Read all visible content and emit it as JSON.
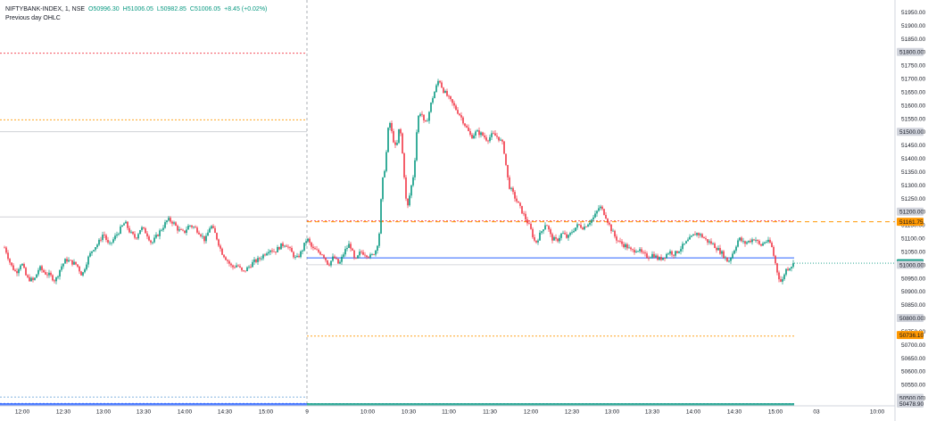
{
  "symbol_line": {
    "symbol": "NIFTYBANK-INDEX, 1, NSE",
    "open": "O50996.30",
    "high": "H51006.05",
    "low": "L50982.85",
    "close": "C51006.05",
    "change": "+8.45 (+0.02%)"
  },
  "indicator_label": "Previous day OHLC",
  "colors": {
    "up": "#089981",
    "down": "#f23645",
    "grid": "#e0e3eb",
    "axis_text": "#131722",
    "high_line": "#f23645",
    "low_line": "#ff9800",
    "open_line": "#e0e0e0",
    "close_line": "#2962ff"
  },
  "chart_data": {
    "type": "candlestick",
    "ylim": [
      50470,
      51975
    ],
    "y_ticks": [
      51950,
      51900,
      51850,
      51800,
      51750,
      51700,
      51650,
      51600,
      51550,
      51500,
      51450,
      51400,
      51350,
      51300,
      51250,
      51200,
      51150,
      51100,
      51050,
      51000,
      50950,
      50900,
      50850,
      50800,
      50750,
      50700,
      50650,
      50600,
      50550,
      50500,
      50478.9
    ],
    "x_ticks": [
      "12:00",
      "12:30",
      "13:00",
      "13:30",
      "14:00",
      "14:30",
      "15:00",
      "9",
      "10:00",
      "10:30",
      "11:00",
      "11:30",
      "12:00",
      "12:30",
      "13:00",
      "13:30",
      "14:00",
      "14:30",
      "15:00",
      "03",
      "10:00"
    ],
    "price_labels": [
      {
        "value": "51800.00",
        "price": 51800,
        "style": "grey"
      },
      {
        "value": "51500.00",
        "price": 51500,
        "style": "grey"
      },
      {
        "value": "51200.00",
        "price": 51200,
        "style": "grey"
      },
      {
        "value": "51161.75",
        "price": 51161.75,
        "style": "orange"
      },
      {
        "value": "51006.05",
        "price": 51006.05,
        "style": "green"
      },
      {
        "value": "51000.00",
        "price": 51000,
        "style": "grey"
      },
      {
        "value": "50800.00",
        "price": 50800,
        "style": "grey"
      },
      {
        "value": "50736.10",
        "price": 50736.1,
        "style": "orange"
      },
      {
        "value": "50500.00",
        "price": 50500,
        "style": "grey"
      },
      {
        "value": "50478.90",
        "price": 50478.9,
        "style": "grey"
      }
    ],
    "prev_day_levels": [
      {
        "segment": 1,
        "high": 51795,
        "low": 51545,
        "open": 51500,
        "close": 50478.9
      },
      {
        "segment": 2,
        "high": 51165,
        "low": 50732,
        "open": 51000,
        "close": 51026
      }
    ],
    "session_levels": [
      {
        "segment": 1,
        "high": 51180,
        "low": 50503
      },
      {
        "segment": 2,
        "low": 50478.9
      }
    ],
    "anchors": [
      [
        0,
        51090
      ],
      [
        6,
        51060
      ],
      [
        12,
        51000
      ],
      [
        18,
        50970
      ],
      [
        24,
        51010
      ],
      [
        30,
        50950
      ],
      [
        38,
        50940
      ],
      [
        44,
        50990
      ],
      [
        50,
        50970
      ],
      [
        56,
        50960
      ],
      [
        62,
        50940
      ],
      [
        68,
        50990
      ],
      [
        74,
        51020
      ],
      [
        80,
        51010
      ],
      [
        86,
        51000
      ],
      [
        92,
        50960
      ],
      [
        98,
        51020
      ],
      [
        104,
        51060
      ],
      [
        110,
        51080
      ],
      [
        116,
        51120
      ],
      [
        122,
        51070
      ],
      [
        128,
        51100
      ],
      [
        134,
        51130
      ],
      [
        140,
        51160
      ],
      [
        146,
        51120
      ],
      [
        152,
        51100
      ],
      [
        158,
        51140
      ],
      [
        164,
        51120
      ],
      [
        170,
        51080
      ],
      [
        176,
        51110
      ],
      [
        182,
        51140
      ],
      [
        188,
        51170
      ],
      [
        194,
        51160
      ],
      [
        200,
        51130
      ],
      [
        206,
        51120
      ],
      [
        212,
        51150
      ],
      [
        218,
        51140
      ],
      [
        224,
        51120
      ],
      [
        230,
        51090
      ],
      [
        236,
        51150
      ],
      [
        242,
        51110
      ],
      [
        248,
        51050
      ],
      [
        254,
        51020
      ],
      [
        260,
        50990
      ],
      [
        266,
        51000
      ],
      [
        272,
        50970
      ],
      [
        278,
        50990
      ],
      [
        284,
        51010
      ],
      [
        290,
        51020
      ],
      [
        296,
        51040
      ],
      [
        302,
        51060
      ],
      [
        308,
        51050
      ],
      [
        314,
        51070
      ],
      [
        320,
        51080
      ],
      [
        326,
        51050
      ],
      [
        332,
        51020
      ],
      [
        338,
        51050
      ],
      [
        344,
        51100
      ],
      [
        350,
        51060
      ],
      [
        356,
        51050
      ],
      [
        362,
        51040
      ],
      [
        368,
        51000
      ],
      [
        374,
        51030
      ],
      [
        380,
        51000
      ],
      [
        386,
        51050
      ],
      [
        392,
        51080
      ],
      [
        398,
        51010
      ],
      [
        404,
        51050
      ],
      [
        410,
        51040
      ],
      [
        416,
        51030
      ],
      [
        422,
        51060
      ],
      [
        425,
        51120
      ],
      [
        428,
        51300
      ],
      [
        432,
        51380
      ],
      [
        436,
        51550
      ],
      [
        440,
        51480
      ],
      [
        444,
        51430
      ],
      [
        448,
        51530
      ],
      [
        452,
        51380
      ],
      [
        456,
        51200
      ],
      [
        460,
        51280
      ],
      [
        464,
        51350
      ],
      [
        468,
        51550
      ],
      [
        472,
        51580
      ],
      [
        476,
        51520
      ],
      [
        480,
        51560
      ],
      [
        484,
        51620
      ],
      [
        488,
        51660
      ],
      [
        492,
        51700
      ],
      [
        496,
        51660
      ],
      [
        500,
        51640
      ],
      [
        504,
        51620
      ],
      [
        510,
        51590
      ],
      [
        516,
        51560
      ],
      [
        522,
        51520
      ],
      [
        528,
        51480
      ],
      [
        534,
        51500
      ],
      [
        540,
        51490
      ],
      [
        546,
        51470
      ],
      [
        552,
        51490
      ],
      [
        558,
        51480
      ],
      [
        564,
        51450
      ],
      [
        570,
        51300
      ],
      [
        576,
        51260
      ],
      [
        582,
        51220
      ],
      [
        588,
        51180
      ],
      [
        594,
        51140
      ],
      [
        600,
        51080
      ],
      [
        606,
        51120
      ],
      [
        612,
        51160
      ],
      [
        618,
        51100
      ],
      [
        624,
        51090
      ],
      [
        630,
        51120
      ],
      [
        636,
        51100
      ],
      [
        642,
        51130
      ],
      [
        648,
        51150
      ],
      [
        654,
        51140
      ],
      [
        660,
        51160
      ],
      [
        666,
        51180
      ],
      [
        672,
        51220
      ],
      [
        678,
        51190
      ],
      [
        684,
        51140
      ],
      [
        690,
        51100
      ],
      [
        696,
        51080
      ],
      [
        702,
        51070
      ],
      [
        708,
        51050
      ],
      [
        714,
        51060
      ],
      [
        720,
        51040
      ],
      [
        726,
        51030
      ],
      [
        732,
        51040
      ],
      [
        738,
        51020
      ],
      [
        744,
        51030
      ],
      [
        750,
        51050
      ],
      [
        756,
        51040
      ],
      [
        762,
        51060
      ],
      [
        768,
        51080
      ],
      [
        774,
        51100
      ],
      [
        780,
        51120
      ],
      [
        786,
        51110
      ],
      [
        792,
        51090
      ],
      [
        798,
        51080
      ],
      [
        804,
        51060
      ],
      [
        810,
        51040
      ],
      [
        816,
        51010
      ],
      [
        822,
        51050
      ],
      [
        828,
        51100
      ],
      [
        834,
        51080
      ],
      [
        840,
        51090
      ],
      [
        846,
        51100
      ],
      [
        852,
        51070
      ],
      [
        858,
        51090
      ],
      [
        864,
        51080
      ],
      [
        868,
        51020
      ],
      [
        872,
        50960
      ],
      [
        876,
        50930
      ],
      [
        880,
        50980
      ],
      [
        884,
        50990
      ],
      [
        888,
        51000
      ],
      [
        890,
        51006
      ]
    ]
  }
}
